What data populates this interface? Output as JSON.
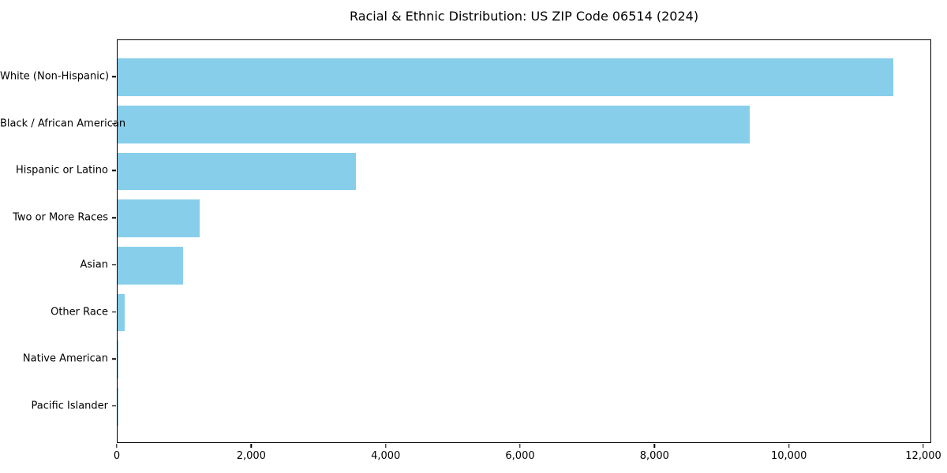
{
  "figure": {
    "title": "Racial & Ethnic Distribution: US ZIP Code 06514 (2024)",
    "background_color": "#FFFFFF"
  },
  "colors": {
    "bar": "#87CEEB",
    "axis": "#000000",
    "text": "#000000"
  },
  "chart_data": {
    "type": "bar",
    "orientation": "horizontal",
    "title": "Racial & Ethnic Distribution: US ZIP Code 06514 (2024)",
    "categories": [
      "White (Non-Hispanic)",
      "Black / African American",
      "Hispanic or Latino",
      "Two or More Races",
      "Asian",
      "Other Race",
      "Native American",
      "Pacific Islander"
    ],
    "values": [
      11540,
      9410,
      3540,
      1220,
      975,
      105,
      14,
      3
    ],
    "xlabel": "",
    "ylabel": "",
    "xlim": [
      0,
      12000
    ],
    "xticks": [
      0,
      2000,
      4000,
      6000,
      8000,
      10000,
      12000
    ],
    "xtick_labels": [
      "0",
      "2,000",
      "4,000",
      "6,000",
      "8,000",
      "10,000",
      "12,000"
    ],
    "grid": false,
    "legend": null,
    "bar_color": "#87CEEB",
    "frame": "full-box"
  }
}
